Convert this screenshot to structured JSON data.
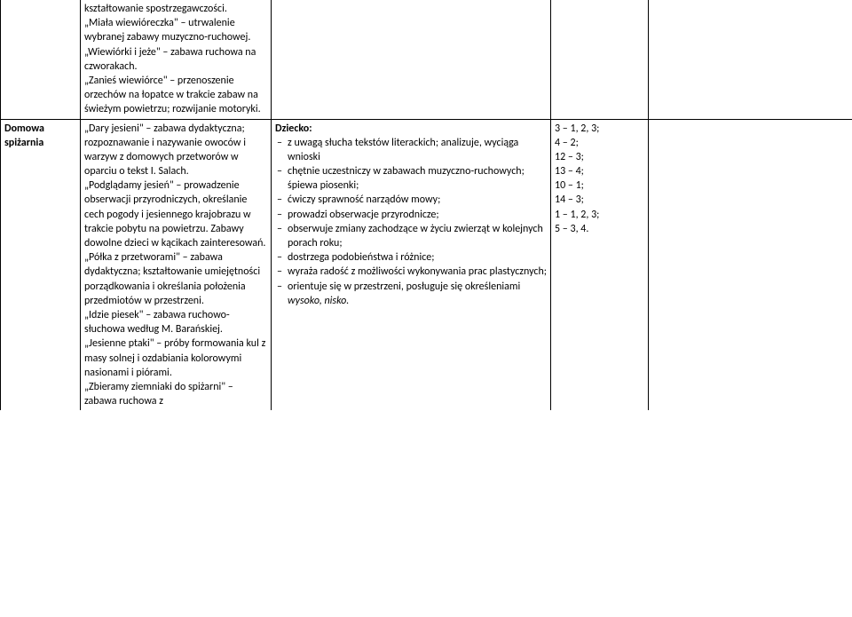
{
  "row0": {
    "col0": "",
    "col1_items": [
      "kształtowanie spostrzegawczości.",
      "„Miała wiewióreczka\" – utrwalenie wybranej zabawy muzyczno-ruchowej.",
      "„Wiewiórki i jeże\" – zabawa ruchowa na czworakach.",
      "„Zanieś wiewiórce\" – przenoszenie orzechów na łopatce w trakcie zabaw na świeżym powietrzu; rozwijanie motoryki."
    ],
    "col2": "",
    "col3": "",
    "col4": ""
  },
  "row1": {
    "col0_l1": "Domowa",
    "col0_l2": "spiżarnia",
    "col1_items": [
      "„Dary jesieni\" – zabawa dydaktyczna; rozpoznawanie i nazywanie owoców i warzyw z domowych przetworów w oparciu o tekst I. Salach.",
      "„Podglądamy jesień\" – prowadzenie obserwacji przyrodniczych, określanie cech pogody i jesiennego krajobrazu w trakcie pobytu na powietrzu. Zabawy dowolne dzieci w kącikach zainteresowań.",
      "„Półka z przetworami\" – zabawa dydaktyczna; kształtowanie umiejętności porządkowania i określania położenia przedmiotów w przestrzeni.",
      "„Idzie piesek\" – zabawa ruchowo-słuchowa według M. Barańskiej.",
      "„Jesienne ptaki\" – próby formowania kul z masy solnej i ozdabiania kolorowymi nasionami i piórami.",
      "„Zbieramy ziemniaki do spiżarni\" – zabawa ruchowa z"
    ],
    "col2_head": "Dziecko:",
    "col2_bullets": [
      "z uwagą słucha tekstów literackich; analizuje, wyciąga wnioski",
      "chętnie uczestniczy w zabawach muzyczno-ruchowych; śpiewa piosenki;",
      "ćwiczy sprawność narządów mowy;",
      "prowadzi obserwacje przyrodnicze;",
      "obserwuje zmiany zachodzące w życiu zwierząt w kolejnych porach roku;",
      "dostrzega podobieństwa i różnice;",
      "wyraża radość z możliwości wykonywania prac plastycznych;",
      "orientuje się w przestrzeni, posługuje się określeniami "
    ],
    "col2_italic_tail": "wysoko, nisko.",
    "col3_lines": [
      "3 – 1, 2, 3;",
      "4 – 2;",
      "12 – 3;",
      "13 – 4;",
      "10 – 1;",
      "14 – 3;",
      "1 – 1, 2, 3;",
      "5 – 3, 4."
    ],
    "col4": ""
  }
}
